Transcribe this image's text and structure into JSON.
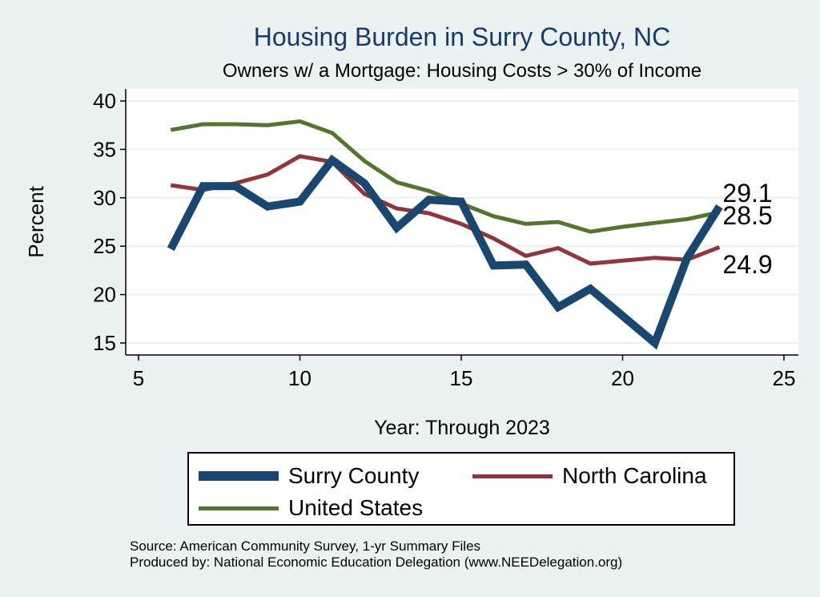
{
  "chart_data": {
    "type": "line",
    "title": "Housing Burden in Surry County, NC",
    "subtitle": "Owners w/ a Mortgage: Housing Costs > 30% of Income",
    "xlabel": "Year: Through 2023",
    "ylabel": "Percent",
    "xlim": [
      5,
      25
    ],
    "ylim": [
      14,
      41
    ],
    "xticks": [
      5,
      10,
      15,
      20,
      25
    ],
    "yticks": [
      15,
      20,
      25,
      30,
      35,
      40
    ],
    "grid": true,
    "legend_position": "bottom",
    "series": [
      {
        "name": "Surry County",
        "color": "#1a476f",
        "width": "thick",
        "x": [
          6,
          7,
          8,
          9,
          10,
          11,
          12,
          13,
          14,
          15,
          16,
          17,
          18,
          19,
          21,
          22,
          23
        ],
        "values": [
          24.7,
          31.2,
          31.2,
          29.1,
          29.6,
          33.9,
          31.5,
          26.9,
          29.8,
          29.6,
          23.0,
          23.1,
          18.7,
          20.6,
          15.0,
          23.8,
          29.1
        ],
        "end_label": "29.1"
      },
      {
        "name": "North Carolina",
        "color": "#90353b",
        "width": "medium",
        "x": [
          6,
          7,
          8,
          9,
          10,
          11,
          12,
          13,
          14,
          15,
          16,
          17,
          18,
          19,
          20,
          21,
          22,
          23
        ],
        "values": [
          31.3,
          30.8,
          31.5,
          32.4,
          34.3,
          33.7,
          30.4,
          28.9,
          28.4,
          27.3,
          25.8,
          24.0,
          24.8,
          23.2,
          23.5,
          23.8,
          23.6,
          24.9
        ],
        "end_label": "24.9"
      },
      {
        "name": "United States",
        "color": "#55752f",
        "width": "medium",
        "x": [
          6,
          7,
          8,
          9,
          10,
          11,
          12,
          13,
          14,
          15,
          16,
          17,
          18,
          19,
          20,
          21,
          22,
          23
        ],
        "values": [
          37.0,
          37.6,
          37.6,
          37.5,
          37.9,
          36.7,
          33.8,
          31.6,
          30.7,
          29.4,
          28.1,
          27.3,
          27.5,
          26.5,
          27.0,
          27.4,
          27.8,
          28.5
        ],
        "end_label": "28.5"
      }
    ]
  },
  "source_line": "Source: American Community Survey, 1-yr Summary Files",
  "produced_line": "Produced by: National Economic Education Delegation (www.NEEDelegation.org)"
}
